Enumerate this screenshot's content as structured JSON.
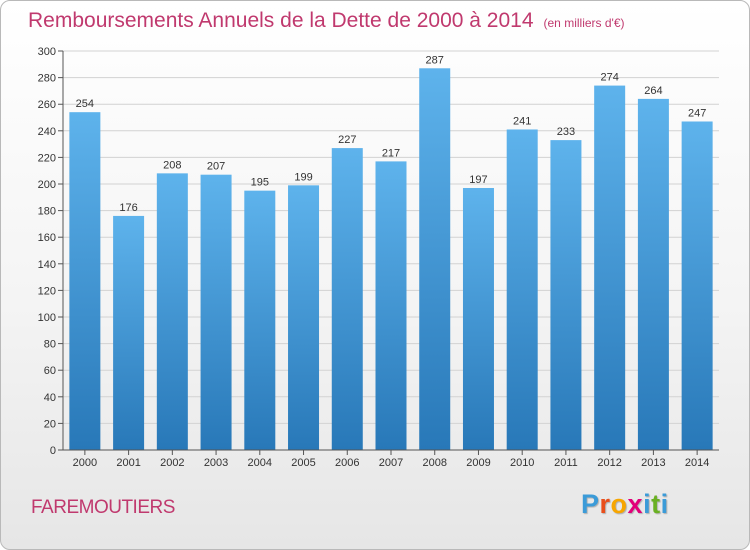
{
  "title": "Remboursements Annuels de la Dette de 2000 à 2014",
  "subtitle": "(en milliers d'€)",
  "place": "FAREMOUTIERS",
  "logo": {
    "text": "Proxiti",
    "letters": [
      "P",
      "r",
      "o",
      "x",
      "i",
      "t",
      "i"
    ],
    "colors": [
      "#3b9bd8",
      "#e94e1b",
      "#f7a600",
      "#e2007a",
      "#3b9bd8",
      "#6ab023",
      "#3b9bd8"
    ]
  },
  "colors": {
    "title": "#c0396e",
    "bar_light": "#5eb3ec",
    "bar_dark": "#2878b8"
  },
  "chart_data": {
    "type": "bar",
    "title": "Remboursements Annuels de la Dette de 2000 à 2014",
    "subtitle": "(en milliers d'€)",
    "categories": [
      "2000",
      "2001",
      "2002",
      "2003",
      "2004",
      "2005",
      "2006",
      "2007",
      "2008",
      "2009",
      "2010",
      "2011",
      "2012",
      "2013",
      "2014"
    ],
    "values": [
      254,
      176,
      208,
      207,
      195,
      199,
      227,
      217,
      287,
      197,
      241,
      233,
      274,
      264,
      247
    ],
    "ylim": [
      0,
      300
    ],
    "yticks": [
      0,
      20,
      40,
      60,
      80,
      100,
      120,
      140,
      160,
      180,
      200,
      220,
      240,
      260,
      280,
      300
    ],
    "grid": true,
    "legend": "none"
  }
}
